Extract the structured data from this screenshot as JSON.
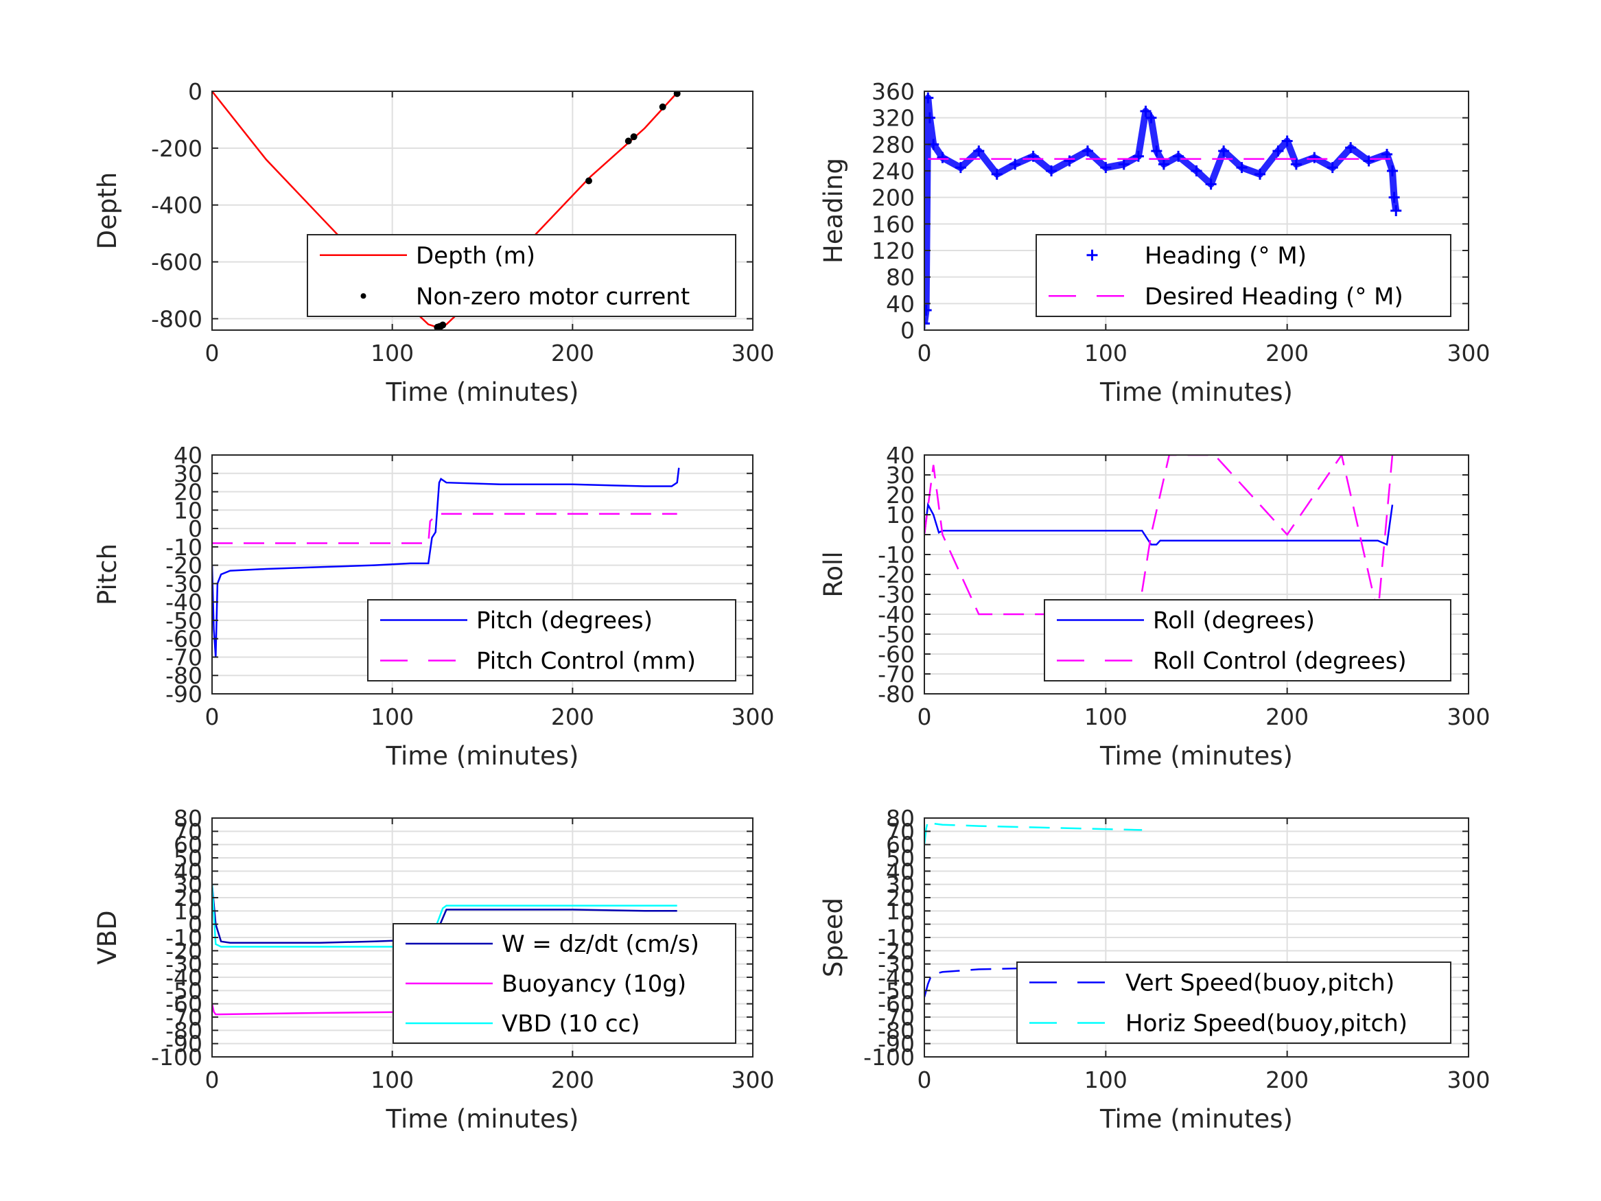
{
  "chart_data": [
    {
      "type": "line",
      "xlabel": "Time (minutes)",
      "ylabel": "Depth",
      "xlim": [
        0,
        300
      ],
      "ylim": [
        -840,
        0
      ],
      "xticks": [
        0,
        100,
        200,
        300
      ],
      "yticks": [
        0,
        -200,
        -400,
        -600,
        -800
      ],
      "grid": true,
      "legend_position": "bottom-right",
      "series": [
        {
          "name": "Depth (m)",
          "style": "solid",
          "color": "#ff0000",
          "x": [
            0,
            30,
            60,
            90,
            120,
            125,
            130,
            150,
            180,
            210,
            240,
            258
          ],
          "y": [
            0,
            -240,
            -440,
            -640,
            -820,
            -830,
            -820,
            -700,
            -500,
            -300,
            -130,
            -5
          ]
        },
        {
          "name": "Non-zero motor current",
          "style": "dots",
          "color": "#000000",
          "x": [
            125,
            126,
            127,
            128,
            209,
            231,
            234,
            250,
            258
          ],
          "y": [
            -830,
            -828,
            -826,
            -822,
            -315,
            -175,
            -160,
            -55,
            -8
          ]
        }
      ]
    },
    {
      "type": "line",
      "xlabel": "Time (minutes)",
      "ylabel": "Heading",
      "xlim": [
        0,
        300
      ],
      "ylim": [
        0,
        360
      ],
      "xticks": [
        0,
        100,
        200,
        300
      ],
      "yticks": [
        0,
        40,
        80,
        120,
        160,
        200,
        240,
        280,
        320,
        360
      ],
      "grid": true,
      "legend_position": "bottom-right",
      "series": [
        {
          "name": "Heading (° M)",
          "style": "plus",
          "color": "#0000ff",
          "x": [
            0,
            1,
            2,
            3,
            5,
            10,
            20,
            30,
            40,
            50,
            60,
            70,
            80,
            90,
            100,
            110,
            118,
            122,
            125,
            128,
            132,
            140,
            150,
            158,
            165,
            175,
            185,
            195,
            200,
            205,
            215,
            225,
            235,
            245,
            255,
            258,
            259,
            260
          ],
          "y": [
            10,
            30,
            350,
            320,
            280,
            260,
            245,
            270,
            235,
            250,
            262,
            240,
            255,
            270,
            245,
            250,
            262,
            330,
            320,
            270,
            250,
            262,
            240,
            220,
            270,
            245,
            235,
            270,
            285,
            250,
            260,
            245,
            275,
            255,
            265,
            240,
            200,
            180
          ]
        },
        {
          "name": "Desired Heading (° M)",
          "style": "dashed",
          "color": "#ff00ff",
          "x": [
            2,
            258
          ],
          "y": [
            258,
            258
          ]
        }
      ]
    },
    {
      "type": "line",
      "xlabel": "Time (minutes)",
      "ylabel": "Pitch",
      "xlim": [
        0,
        300
      ],
      "ylim": [
        -90,
        40
      ],
      "xticks": [
        0,
        100,
        200,
        300
      ],
      "yticks": [
        40,
        30,
        20,
        10,
        0,
        -10,
        -20,
        -30,
        -40,
        -50,
        -60,
        -70,
        -80,
        -90
      ],
      "grid": true,
      "legend_position": "bottom-right",
      "series": [
        {
          "name": "Pitch (degrees)",
          "style": "solid",
          "color": "#0000ff",
          "x": [
            0,
            1,
            2,
            3,
            5,
            10,
            30,
            60,
            90,
            110,
            120,
            122,
            124,
            126,
            127,
            130,
            160,
            200,
            240,
            255,
            258,
            259
          ],
          "y": [
            -20,
            -55,
            -70,
            -30,
            -25,
            -23,
            -22,
            -21,
            -20,
            -19,
            -19,
            -5,
            -2,
            25,
            27,
            25,
            24,
            24,
            23,
            23,
            25,
            33
          ]
        },
        {
          "name": "Pitch Control (mm)",
          "style": "dashed",
          "color": "#ff00ff",
          "x": [
            0,
            120,
            121,
            125,
            258
          ],
          "y": [
            -8,
            -8,
            4,
            8,
            8
          ]
        }
      ]
    },
    {
      "type": "line",
      "xlabel": "Time (minutes)",
      "ylabel": "Roll",
      "xlim": [
        0,
        300
      ],
      "ylim": [
        -80,
        40
      ],
      "xticks": [
        0,
        100,
        200,
        300
      ],
      "yticks": [
        40,
        30,
        20,
        10,
        0,
        -10,
        -20,
        -30,
        -40,
        -50,
        -60,
        -70,
        -80
      ],
      "grid": true,
      "legend_position": "bottom-right",
      "series": [
        {
          "name": "Roll (degrees)",
          "style": "solid",
          "color": "#0000ff",
          "x": [
            0,
            2,
            5,
            8,
            10,
            50,
            100,
            120,
            125,
            128,
            130,
            160,
            200,
            230,
            240,
            250,
            255,
            258
          ],
          "y": [
            0,
            15,
            10,
            1,
            2,
            2,
            2,
            2,
            -5,
            -5,
            -3,
            -3,
            -3,
            -3,
            -3,
            -3,
            -5,
            15
          ]
        },
        {
          "name": "Roll Control (degrees)",
          "style": "dashed",
          "color": "#ff00ff",
          "x": [
            0,
            5,
            10,
            30,
            60,
            90,
            118,
            125,
            135,
            160,
            200,
            230,
            250,
            258
          ],
          "y": [
            0,
            35,
            0,
            -40,
            -40,
            -40,
            -40,
            0,
            40,
            40,
            0,
            40,
            -40,
            40
          ]
        }
      ]
    },
    {
      "type": "line",
      "xlabel": "Time (minutes)",
      "ylabel": "VBD",
      "xlim": [
        0,
        300
      ],
      "ylim": [
        -100,
        80
      ],
      "xticks": [
        0,
        100,
        200,
        300
      ],
      "yticks": [
        80,
        70,
        60,
        50,
        40,
        30,
        20,
        10,
        0,
        -10,
        -20,
        -30,
        -40,
        -50,
        -60,
        -70,
        -80,
        -90,
        -100
      ],
      "yticklabels_visible": [
        "80",
        "70",
        "60",
        "50",
        "40",
        "30",
        "20",
        "10",
        "0",
        "-10",
        "-20",
        "-30",
        "-40",
        "-50",
        "-60",
        "-70",
        "-80",
        "-90",
        "-100"
      ],
      "grid": true,
      "legend_position": "bottom-right",
      "series": [
        {
          "name": "W = dz/dt (cm/s)",
          "style": "solid",
          "color": "#0000b0",
          "x": [
            0,
            2,
            5,
            10,
            30,
            60,
            90,
            110,
            120,
            125,
            130,
            160,
            200,
            240,
            258
          ],
          "y": [
            30,
            0,
            -13,
            -14,
            -14,
            -14,
            -13,
            -12,
            -12,
            -5,
            11,
            11,
            11,
            10,
            10
          ]
        },
        {
          "name": "Buoyancy (10g)",
          "style": "solid",
          "color": "#ff00ff",
          "x": [
            0,
            1,
            2,
            50,
            120
          ],
          "y": [
            -60,
            -66,
            -68,
            -67,
            -66
          ]
        },
        {
          "name": "VBD (10 cc)",
          "style": "solid",
          "color": "#00ffff",
          "x": [
            0,
            2,
            5,
            60,
            120,
            128,
            130,
            258
          ],
          "y": [
            30,
            -15,
            -17,
            -17,
            -17,
            12,
            14,
            14
          ]
        }
      ]
    },
    {
      "type": "line",
      "xlabel": "Time (minutes)",
      "ylabel": "Speed",
      "xlim": [
        0,
        300
      ],
      "ylim": [
        -100,
        80
      ],
      "xticks": [
        0,
        100,
        200,
        300
      ],
      "yticks": [
        80,
        70,
        60,
        50,
        40,
        30,
        20,
        10,
        0,
        -10,
        -20,
        -30,
        -40,
        -50,
        -60,
        -70,
        -80,
        -90,
        -100
      ],
      "yticklabels_visible": [
        "80",
        "70",
        "60",
        "50",
        "40",
        "30",
        "20",
        "10",
        "0",
        "-10",
        "-20",
        "-30",
        "-40",
        "-50",
        "-60",
        "-70",
        "-80",
        "-90",
        "-100"
      ],
      "grid": true,
      "legend_position": "bottom-right",
      "series": [
        {
          "name": "Vert Speed(buoy,pitch)",
          "style": "dashed",
          "color": "#0000ff",
          "x": [
            0,
            2,
            4,
            10,
            30,
            60,
            90,
            120
          ],
          "y": [
            -55,
            -45,
            -38,
            -36,
            -34,
            -33,
            -32,
            -31
          ]
        },
        {
          "name": "Horiz Speed(buoy,pitch)",
          "style": "dashed",
          "color": "#00ffff",
          "x": [
            0,
            1,
            2,
            4,
            10,
            30,
            60,
            90,
            120
          ],
          "y": [
            60,
            72,
            78,
            76,
            75,
            74,
            73,
            72,
            71
          ]
        }
      ]
    }
  ]
}
